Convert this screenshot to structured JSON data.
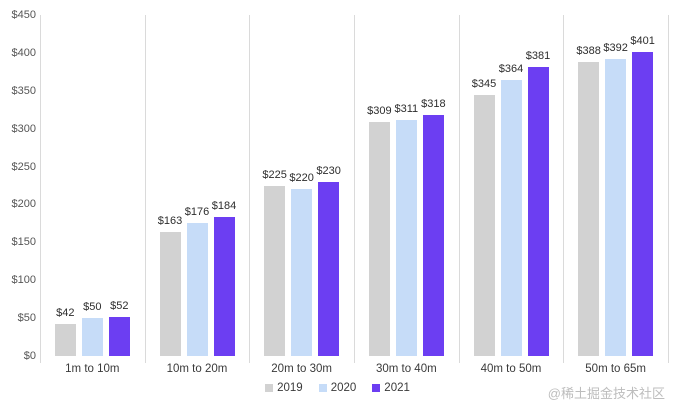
{
  "chart_data": {
    "type": "bar",
    "title": "",
    "xlabel": "",
    "ylabel": "",
    "categories": [
      "1m to 10m",
      "10m to 20m",
      "20m to 30m",
      "30m to 40m",
      "40m to 50m",
      "50m to 65m"
    ],
    "series": [
      {
        "name": "2019",
        "color": "#d2d2d2",
        "values": [
          42,
          163,
          225,
          309,
          345,
          388
        ]
      },
      {
        "name": "2020",
        "color": "#c6dcf8",
        "values": [
          50,
          176,
          220,
          311,
          364,
          392
        ]
      },
      {
        "name": "2021",
        "color": "#6c3ef2",
        "values": [
          52,
          184,
          230,
          318,
          381,
          401
        ]
      }
    ],
    "value_prefix": "$",
    "data_labels": true,
    "ylim": [
      0,
      450
    ],
    "ytick_step": 50,
    "ytick_labels": [
      "$0",
      "$50",
      "$100",
      "$150",
      "$200",
      "$250",
      "$300",
      "$350",
      "$400",
      "$450"
    ],
    "grid": "vertical-category-separators",
    "legend_position": "bottom-center"
  },
  "watermark": {
    "text": "@稀土掘金技术社区"
  },
  "colors": {
    "background": "#ffffff",
    "gridline": "#dadada",
    "tick_label": "#555555",
    "value_label": "#2d2d2d",
    "category_label": "#3a3a3a",
    "legend_text": "#3a3a3a",
    "watermark": "#bdbdbd",
    "series_2019": "#d2d2d2",
    "series_2020": "#c6dcf8",
    "series_2021": "#6c3ef2"
  }
}
